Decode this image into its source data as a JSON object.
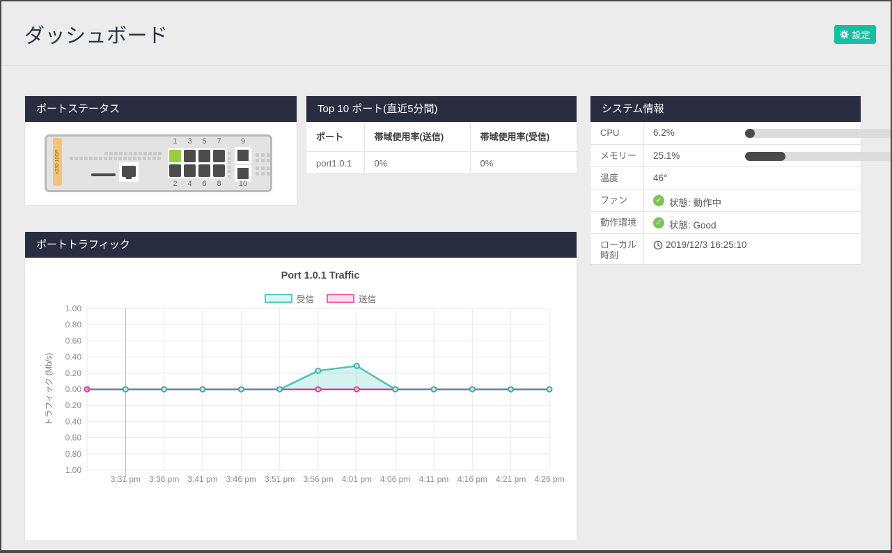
{
  "header": {
    "title": "ダッシュボード",
    "settings_label": "設定",
    "accent_color": "#16bf9f"
  },
  "port_status": {
    "title": "ポートステータス",
    "device_model": "x230-10GP",
    "port_numbers_top": [
      "1",
      "3",
      "5",
      "7"
    ],
    "port_numbers_bottom": [
      "2",
      "4",
      "6",
      "8"
    ],
    "sfp_number_top": "9",
    "sfp_number_bottom": "10",
    "active_port": "1",
    "active_port_color": "#9ccb3d"
  },
  "top_ports": {
    "title": "Top 10 ポート(直近5分間)",
    "columns": [
      "ポート",
      "帯域使用率(送信)",
      "帯域使用率(受信)"
    ],
    "rows": [
      {
        "port": "port1.0.1",
        "tx": "0%",
        "rx": "0%"
      }
    ]
  },
  "system_info": {
    "title": "システム情報",
    "cpu": {
      "label": "CPU",
      "value": "6.2%",
      "pct": 6.2
    },
    "memory": {
      "label": "メモリー",
      "value": "25.1%",
      "pct": 25.1
    },
    "temperature": {
      "label": "温度",
      "value": "46°"
    },
    "fan": {
      "label": "ファン",
      "value": "状態: 動作中"
    },
    "environment": {
      "label": "動作環境",
      "value": "状態: Good"
    },
    "local_time": {
      "label": "ローカル時刻",
      "value": "2019/12/3 16:25:10"
    },
    "ok_color": "#7cc454",
    "bar_color": "#4a4a4a"
  },
  "port_traffic": {
    "title": "ポートトラフィック",
    "chart_data": {
      "type": "area",
      "title": "Port 1.0.1 Traffic",
      "ylabel": "トラフィック (Mb/s)",
      "ylim": [
        -1,
        1
      ],
      "y_tick_labels": [
        "1.00",
        "0.80",
        "0.60",
        "0.40",
        "0.20",
        "0.00",
        "0.20",
        "0.40",
        "0.60",
        "0.80",
        "1.00"
      ],
      "x": [
        "",
        "3:31 pm",
        "3:36 pm",
        "3:41 pm",
        "3:46 pm",
        "3:51 pm",
        "3:56 pm",
        "4:01 pm",
        "4:06 pm",
        "4:11 pm",
        "4:16 pm",
        "4:21 pm",
        "4:26 pm"
      ],
      "grid": true,
      "legend_position": "top",
      "series": [
        {
          "name": "受信",
          "color": "#2bb3a3",
          "values": [
            0,
            0,
            0,
            0,
            0,
            0,
            0.23,
            0.29,
            0,
            0,
            0,
            0,
            0
          ]
        },
        {
          "name": "送信",
          "color": "#ed2f96",
          "values": [
            0,
            0,
            0,
            0,
            0,
            0,
            0,
            0,
            0,
            0,
            0,
            0,
            0
          ]
        }
      ]
    }
  }
}
